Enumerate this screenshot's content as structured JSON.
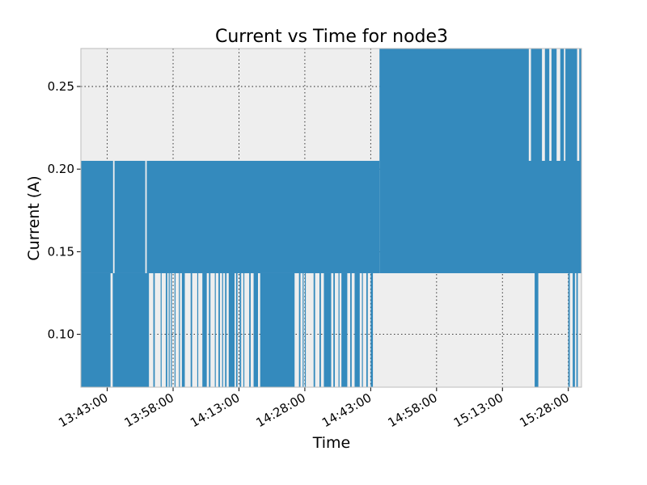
{
  "chart_data": {
    "type": "line",
    "title": "Current vs Time for node3",
    "xlabel": "Time",
    "ylabel": "Current (A)",
    "xlim": [
      "13:37:00",
      "15:31:00"
    ],
    "ylim": [
      0.068,
      0.273
    ],
    "x_ticks": [
      "13:43:00",
      "13:58:00",
      "14:13:00",
      "14:28:00",
      "14:43:00",
      "14:58:00",
      "15:13:00",
      "15:28:00"
    ],
    "y_ticks": [
      0.1,
      0.15,
      0.2,
      0.25
    ],
    "y_tick_labels": [
      "0.10",
      "0.15",
      "0.20",
      "0.25"
    ],
    "grid": true,
    "legend": "none",
    "background_color": "#eeeeee",
    "series_color": "#348abd",
    "sample_interval_seconds": 2,
    "level_values": [
      0.068,
      0.137,
      0.205,
      0.273
    ],
    "series": [
      {
        "segments": [
          {
            "start": "13:37:00",
            "end": "14:45:00",
            "upper": 0.205,
            "lower": 0.137
          },
          {
            "start": "14:45:00",
            "end": "15:31:00",
            "upper": 0.273,
            "lower": 0.137
          },
          {
            "start": "15:19:00",
            "end": "15:28:00",
            "upper": 0.205,
            "lower": 0.137
          }
        ],
        "low_dips": [
          [
            "13:37:00",
            "13:43:45"
          ],
          [
            "13:44:15",
            "13:52:30"
          ],
          [
            "13:53:30",
            "13:53:50"
          ],
          [
            "13:55:10",
            "13:55:20"
          ],
          [
            "13:56:20",
            "13:56:40"
          ],
          [
            "13:57:00",
            "13:57:10"
          ],
          [
            "13:57:30",
            "13:57:40"
          ],
          [
            "13:58:20",
            "13:58:30"
          ],
          [
            "13:59:20",
            "13:59:30"
          ],
          [
            "14:00:00",
            "14:00:40"
          ],
          [
            "14:02:00",
            "14:02:20"
          ],
          [
            "14:03:30",
            "14:03:40"
          ],
          [
            "14:04:40",
            "14:05:40"
          ],
          [
            "14:06:10",
            "14:06:30"
          ],
          [
            "14:07:30",
            "14:07:40"
          ],
          [
            "14:08:20",
            "14:08:40"
          ],
          [
            "14:09:10",
            "14:09:20"
          ],
          [
            "14:09:50",
            "14:10:10"
          ],
          [
            "14:10:40",
            "14:12:00"
          ],
          [
            "14:12:20",
            "14:12:40"
          ],
          [
            "14:13:10",
            "14:13:30"
          ],
          [
            "14:14:00",
            "14:14:10"
          ],
          [
            "14:15:20",
            "14:15:40"
          ],
          [
            "14:16:20",
            "14:17:20"
          ],
          [
            "14:17:50",
            "14:25:40"
          ],
          [
            "14:26:40",
            "14:27:00"
          ],
          [
            "14:27:30",
            "14:27:40"
          ],
          [
            "14:28:00",
            "14:28:10"
          ],
          [
            "14:30:00",
            "14:30:20"
          ],
          [
            "14:31:20",
            "14:31:40"
          ],
          [
            "14:32:20",
            "14:34:00"
          ],
          [
            "14:34:30",
            "14:34:50"
          ],
          [
            "14:35:40",
            "14:35:50"
          ],
          [
            "14:36:20",
            "14:37:40"
          ],
          [
            "14:38:20",
            "14:38:40"
          ],
          [
            "14:39:20",
            "14:40:30"
          ],
          [
            "14:41:00",
            "14:41:10"
          ],
          [
            "14:42:00",
            "14:42:20"
          ],
          [
            "14:43:00",
            "14:43:30"
          ],
          [
            "15:20:20",
            "15:21:10"
          ],
          [
            "15:28:00",
            "15:28:20"
          ],
          [
            "15:29:00",
            "15:29:30"
          ],
          [
            "15:29:50",
            "15:30:10"
          ]
        ],
        "upper_gaps": [
          [
            "15:19:00",
            "15:19:30"
          ],
          [
            "15:22:00",
            "15:22:40"
          ],
          [
            "15:23:40",
            "15:24:10"
          ],
          [
            "15:25:20",
            "15:26:10"
          ],
          [
            "15:27:00",
            "15:27:20"
          ],
          [
            "15:30:00",
            "15:30:30"
          ]
        ],
        "lower_gaps": [
          [
            "13:44:20",
            "13:44:40"
          ],
          [
            "13:51:40",
            "13:52:00"
          ]
        ]
      }
    ]
  }
}
